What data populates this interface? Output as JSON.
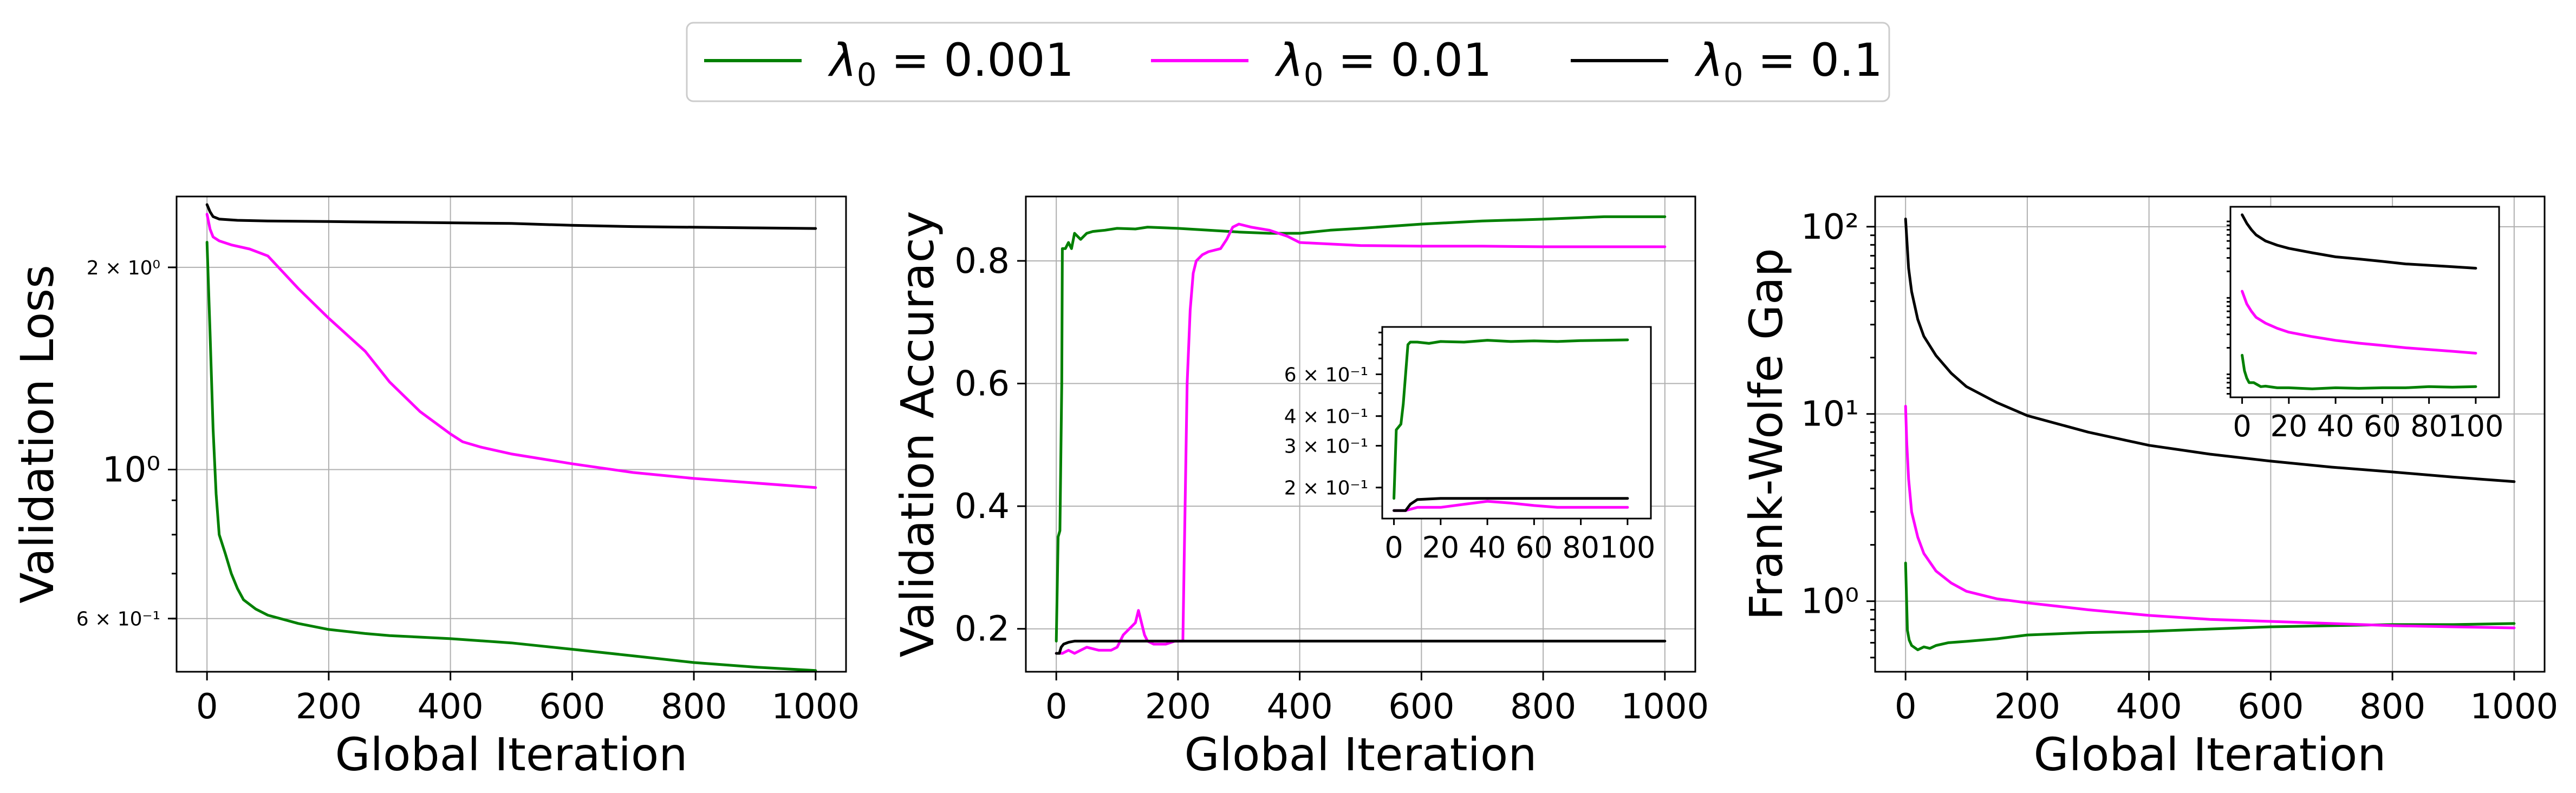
{
  "legend": {
    "entries": [
      {
        "label": "λ0 = 0.001",
        "sym": "λ",
        "sub": "0",
        "eq": " = 0.001",
        "color": "#008000"
      },
      {
        "label": "λ0 = 0.01",
        "sym": "λ",
        "sub": "0",
        "eq": " = 0.01",
        "color": "#ff00ff"
      },
      {
        "label": "λ0 = 0.1",
        "sym": "λ",
        "sub": "0",
        "eq": " = 0.1",
        "color": "#000000"
      }
    ]
  },
  "chart_data": [
    {
      "type": "line",
      "title": "",
      "xlabel": "Global Iteration",
      "ylabel": "Validation Loss",
      "yscale": "log",
      "xlim": [
        -50,
        1050
      ],
      "ylim": [
        0.5,
        2.55
      ],
      "xticks": [
        0,
        200,
        400,
        600,
        800,
        1000
      ],
      "yticks": [
        {
          "value": 2.0,
          "label": "2 × 10⁰",
          "size": "small"
        },
        {
          "value": 1.0,
          "label": "10⁰",
          "size": "large"
        },
        {
          "value": 0.6,
          "label": "6 × 10⁻¹",
          "size": "small"
        }
      ],
      "grid": true,
      "series": [
        {
          "name": "λ0 = 0.001",
          "color": "#008000",
          "x": [
            0,
            5,
            10,
            15,
            20,
            30,
            40,
            50,
            60,
            80,
            100,
            150,
            200,
            260,
            300,
            400,
            500,
            600,
            700,
            800,
            900,
            1000
          ],
          "y": [
            2.18,
            1.6,
            1.15,
            0.92,
            0.8,
            0.75,
            0.7,
            0.665,
            0.64,
            0.62,
            0.607,
            0.59,
            0.578,
            0.57,
            0.566,
            0.56,
            0.552,
            0.54,
            0.528,
            0.516,
            0.508,
            0.502
          ]
        },
        {
          "name": "λ0 = 0.01",
          "color": "#ff00ff",
          "x": [
            0,
            5,
            10,
            20,
            40,
            70,
            100,
            150,
            200,
            260,
            300,
            350,
            400,
            420,
            450,
            500,
            600,
            700,
            800,
            900,
            1000
          ],
          "y": [
            2.4,
            2.28,
            2.22,
            2.19,
            2.16,
            2.13,
            2.08,
            1.86,
            1.68,
            1.5,
            1.35,
            1.22,
            1.13,
            1.1,
            1.08,
            1.055,
            1.02,
            0.99,
            0.97,
            0.955,
            0.94
          ]
        },
        {
          "name": "λ0 = 0.1",
          "color": "#000000",
          "x": [
            0,
            5,
            10,
            20,
            50,
            100,
            200,
            300,
            400,
            500,
            600,
            700,
            800,
            900,
            1000
          ],
          "y": [
            2.48,
            2.42,
            2.38,
            2.36,
            2.35,
            2.345,
            2.34,
            2.335,
            2.33,
            2.325,
            2.31,
            2.3,
            2.295,
            2.29,
            2.285
          ]
        }
      ]
    },
    {
      "type": "line",
      "title": "",
      "xlabel": "Global Iteration",
      "ylabel": "Validation Accuracy",
      "yscale": "linear",
      "xlim": [
        -50,
        1050
      ],
      "ylim": [
        0.13,
        0.905
      ],
      "xticks": [
        0,
        200,
        400,
        600,
        800,
        1000
      ],
      "yticks": [
        {
          "value": 0.2,
          "label": "0.2"
        },
        {
          "value": 0.4,
          "label": "0.4"
        },
        {
          "value": 0.6,
          "label": "0.6"
        },
        {
          "value": 0.8,
          "label": "0.8"
        }
      ],
      "grid": true,
      "series": [
        {
          "name": "λ0 = 0.001",
          "color": "#008000",
          "x": [
            0,
            3,
            6,
            9,
            10,
            12,
            15,
            20,
            25,
            30,
            40,
            50,
            60,
            80,
            100,
            130,
            150,
            200,
            250,
            300,
            350,
            400,
            450,
            500,
            600,
            700,
            800,
            900,
            1000
          ],
          "y": [
            0.18,
            0.35,
            0.36,
            0.6,
            0.82,
            0.82,
            0.82,
            0.83,
            0.82,
            0.845,
            0.835,
            0.845,
            0.848,
            0.85,
            0.853,
            0.852,
            0.855,
            0.853,
            0.85,
            0.847,
            0.845,
            0.845,
            0.85,
            0.853,
            0.86,
            0.865,
            0.868,
            0.872,
            0.872
          ]
        },
        {
          "name": "λ0 = 0.01",
          "color": "#ff00ff",
          "x": [
            0,
            10,
            20,
            30,
            50,
            70,
            90,
            100,
            110,
            120,
            130,
            135,
            140,
            145,
            150,
            160,
            170,
            180,
            195,
            200,
            205,
            208,
            210,
            215,
            220,
            225,
            230,
            240,
            250,
            270,
            280,
            290,
            300,
            320,
            350,
            380,
            400,
            500,
            600,
            700,
            800,
            900,
            1000
          ],
          "y": [
            0.16,
            0.16,
            0.165,
            0.16,
            0.17,
            0.165,
            0.165,
            0.17,
            0.19,
            0.2,
            0.21,
            0.23,
            0.21,
            0.19,
            0.18,
            0.175,
            0.175,
            0.175,
            0.18,
            0.18,
            0.18,
            0.18,
            0.3,
            0.6,
            0.72,
            0.78,
            0.8,
            0.81,
            0.815,
            0.82,
            0.835,
            0.855,
            0.86,
            0.855,
            0.85,
            0.84,
            0.83,
            0.825,
            0.824,
            0.824,
            0.823,
            0.823,
            0.823
          ]
        },
        {
          "name": "λ0 = 0.1",
          "color": "#000000",
          "x": [
            0,
            5,
            8,
            12,
            20,
            30,
            50,
            100,
            200,
            300,
            400,
            500,
            600,
            700,
            800,
            900,
            1000
          ],
          "y": [
            0.16,
            0.16,
            0.17,
            0.175,
            0.178,
            0.18,
            0.18,
            0.18,
            0.18,
            0.18,
            0.18,
            0.18,
            0.18,
            0.18,
            0.18,
            0.18,
            0.18
          ]
        }
      ],
      "inset": {
        "type": "line",
        "yscale": "log",
        "xlim": [
          -5,
          110
        ],
        "ylim": [
          0.148,
          0.95
        ],
        "xticks": [
          0,
          20,
          40,
          60,
          80,
          100
        ],
        "yticks": [
          {
            "value": 0.6,
            "label": "6 × 10⁻¹"
          },
          {
            "value": 0.4,
            "label": "4 × 10⁻¹"
          },
          {
            "value": 0.3,
            "label": "3 × 10⁻¹"
          },
          {
            "value": 0.2,
            "label": "2 × 10⁻¹"
          }
        ],
        "series": [
          {
            "name": "λ0 = 0.001",
            "color": "#008000",
            "x": [
              0,
              1,
              2,
              3,
              4,
              5,
              6,
              7,
              8,
              10,
              15,
              20,
              30,
              40,
              50,
              60,
              70,
              80,
              90,
              100
            ],
            "y": [
              0.18,
              0.35,
              0.36,
              0.37,
              0.45,
              0.6,
              0.8,
              0.82,
              0.82,
              0.82,
              0.81,
              0.825,
              0.82,
              0.835,
              0.825,
              0.83,
              0.825,
              0.832,
              0.835,
              0.838
            ]
          },
          {
            "name": "λ0 = 0.01",
            "color": "#ff00ff",
            "x": [
              0,
              5,
              10,
              20,
              30,
              40,
              50,
              60,
              70,
              80,
              90,
              100
            ],
            "y": [
              0.16,
              0.16,
              0.165,
              0.165,
              0.17,
              0.175,
              0.172,
              0.168,
              0.165,
              0.165,
              0.165,
              0.165
            ]
          },
          {
            "name": "λ0 = 0.1",
            "color": "#000000",
            "x": [
              0,
              5,
              7,
              10,
              20,
              40,
              60,
              80,
              100
            ],
            "y": [
              0.16,
              0.16,
              0.17,
              0.178,
              0.18,
              0.18,
              0.18,
              0.18,
              0.18
            ]
          }
        ]
      }
    },
    {
      "type": "line",
      "title": "",
      "xlabel": "Global Iteration",
      "ylabel": "Frank-Wolfe Gap",
      "yscale": "log",
      "xlim": [
        -50,
        1050
      ],
      "ylim": [
        0.42,
        145
      ],
      "xticks": [
        0,
        200,
        400,
        600,
        800,
        1000
      ],
      "yticks": [
        {
          "value": 100,
          "label": "10²"
        },
        {
          "value": 10,
          "label": "10¹"
        },
        {
          "value": 1,
          "label": "10⁰"
        }
      ],
      "grid": true,
      "series": [
        {
          "name": "λ0 = 0.001",
          "color": "#008000",
          "x": [
            0,
            3,
            6,
            10,
            20,
            30,
            40,
            50,
            70,
            100,
            150,
            200,
            300,
            400,
            500,
            600,
            700,
            800,
            900,
            1000
          ],
          "y": [
            1.6,
            0.7,
            0.62,
            0.58,
            0.55,
            0.57,
            0.56,
            0.58,
            0.6,
            0.61,
            0.63,
            0.66,
            0.68,
            0.69,
            0.71,
            0.73,
            0.74,
            0.75,
            0.75,
            0.76
          ]
        },
        {
          "name": "λ0 = 0.01",
          "color": "#ff00ff",
          "x": [
            0,
            2,
            5,
            10,
            20,
            30,
            50,
            75,
            100,
            150,
            200,
            250,
            300,
            400,
            500,
            600,
            700,
            800,
            900,
            1000
          ],
          "y": [
            11.0,
            7.0,
            4.5,
            3.0,
            2.2,
            1.8,
            1.45,
            1.25,
            1.13,
            1.03,
            0.98,
            0.94,
            0.9,
            0.84,
            0.8,
            0.78,
            0.76,
            0.74,
            0.73,
            0.72
          ]
        },
        {
          "name": "λ0 = 0.1",
          "color": "#000000",
          "x": [
            0,
            5,
            10,
            20,
            30,
            50,
            75,
            100,
            150,
            200,
            300,
            400,
            500,
            600,
            700,
            800,
            900,
            1000
          ],
          "y": [
            110,
            60,
            45,
            32,
            26,
            20.5,
            16.5,
            14.0,
            11.5,
            9.8,
            8.0,
            6.8,
            6.1,
            5.6,
            5.2,
            4.9,
            4.6,
            4.35
          ]
        }
      ],
      "inset": {
        "type": "line",
        "yscale": "log",
        "xlim": [
          -5,
          110
        ],
        "ylim": [
          0.45,
          140
        ],
        "xticks": [
          0,
          20,
          40,
          60,
          80,
          100
        ],
        "yticks": [],
        "series": [
          {
            "name": "λ0 = 0.001",
            "color": "#008000",
            "x": [
              0,
              1,
              2,
              3,
              5,
              8,
              10,
              15,
              20,
              30,
              40,
              50,
              60,
              70,
              80,
              90,
              100
            ],
            "y": [
              1.6,
              1.0,
              0.8,
              0.7,
              0.7,
              0.62,
              0.63,
              0.6,
              0.6,
              0.58,
              0.6,
              0.59,
              0.6,
              0.6,
              0.62,
              0.61,
              0.62
            ]
          },
          {
            "name": "λ0 = 0.01",
            "color": "#ff00ff",
            "x": [
              0,
              2,
              4,
              6,
              10,
              15,
              20,
              30,
              40,
              50,
              60,
              70,
              80,
              90,
              100
            ],
            "y": [
              11,
              7.5,
              6,
              5,
              4.2,
              3.6,
              3.2,
              2.8,
              2.5,
              2.3,
              2.15,
              2.0,
              1.9,
              1.8,
              1.7
            ]
          },
          {
            "name": "λ0 = 0.1",
            "color": "#000000",
            "x": [
              0,
              2,
              4,
              6,
              10,
              15,
              20,
              30,
              40,
              50,
              60,
              70,
              80,
              90,
              100
            ],
            "y": [
              110,
              85,
              70,
              60,
              50,
              44,
              40,
              35,
              31,
              29,
              27,
              25,
              24,
              23,
              22
            ]
          }
        ]
      }
    }
  ]
}
